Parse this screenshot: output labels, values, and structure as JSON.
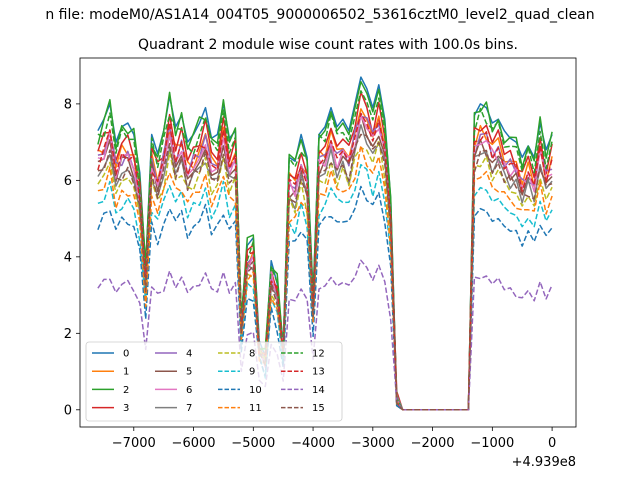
{
  "chart_data": {
    "type": "line",
    "suptitle": "n file: modeM0/AS1A14_004T05_9000006502_53616cztM0_level2_quad_clean",
    "title": "Quadrant 2 module wise count rates with 100.0s bins.",
    "xlabel": "",
    "ylabel": "",
    "x_offset_label": "+4.939e8",
    "xlim": [
      -7900,
      400
    ],
    "ylim": [
      -0.45,
      9.2
    ],
    "xticks": [
      -7000,
      -6000,
      -5000,
      -4000,
      -3000,
      -2000,
      -1000,
      0
    ],
    "xtick_labels": [
      "−7000",
      "−6000",
      "−5000",
      "−4000",
      "−3000",
      "−2000",
      "−1000",
      "0"
    ],
    "yticks": [
      0,
      2,
      4,
      6,
      8
    ],
    "ytick_labels": [
      "0",
      "2",
      "4",
      "6",
      "8"
    ],
    "grid": false,
    "legend_position": "lower-left",
    "legend_columns": 4,
    "x": [
      -7600,
      -7500,
      -7400,
      -7300,
      -7200,
      -7100,
      -7000,
      -6900,
      -6800,
      -6700,
      -6600,
      -6500,
      -6400,
      -6300,
      -6200,
      -6100,
      -6000,
      -5900,
      -5800,
      -5700,
      -5600,
      -5500,
      -5400,
      -5300,
      -5200,
      -5100,
      -5000,
      -4900,
      -4800,
      -4700,
      -4600,
      -4500,
      -4400,
      -4300,
      -4200,
      -4100,
      -4000,
      -3900,
      -3800,
      -3700,
      -3600,
      -3500,
      -3400,
      -3300,
      -3200,
      -3100,
      -3000,
      -2900,
      -2800,
      -2700,
      -2600,
      -2500,
      -2400,
      -2300,
      -2200,
      -2100,
      -2000,
      -1900,
      -1800,
      -1700,
      -1600,
      -1500,
      -1400,
      -1300,
      -1200,
      -1100,
      -1000,
      -900,
      -800,
      -700,
      -600,
      -500,
      -400,
      -300,
      -200,
      -100,
      0
    ],
    "series_profile": {
      "wave": [
        0.04,
        -0.02,
        0.06,
        -0.03,
        0.02,
        -0.05,
        0.03,
        0.05,
        -0.04,
        0.02,
        0.0,
        0.06,
        -0.03,
        0.04,
        -0.06,
        0.02,
        0.05,
        -0.02,
        0.03,
        -0.04,
        0.06,
        -0.01,
        0.04,
        -0.05,
        0.0,
        0.02,
        0.05,
        -0.03,
        0.04,
        -0.02,
        0.03,
        0.06,
        -0.05,
        0.02,
        -0.03,
        0.05,
        0.0,
        0.04,
        -0.02,
        0.06,
        0.03,
        -0.04,
        0.05,
        -0.03,
        0.07,
        -0.02,
        0.04,
        0.03,
        -0.01,
        0.0,
        0.0,
        0.0,
        0.0,
        0.0,
        0.0,
        0.0,
        0.0,
        0.0,
        0.0,
        0.0,
        0.0,
        0.0,
        0.0,
        0.03,
        -0.02,
        0.05,
        0.02,
        -0.04,
        0.03,
        0.01,
        -0.03,
        0.05,
        -0.02,
        0.04,
        0.06,
        -0.03,
        0.02
      ]
    },
    "series": [
      {
        "name": "0",
        "color": "#1f77b4",
        "dash": "solid",
        "level": 7.3,
        "values": [
          7.3,
          7.6,
          8.0,
          7.0,
          7.4,
          7.5,
          7.2,
          6.2,
          3.7,
          7.2,
          6.7,
          7.3,
          8.2,
          7.4,
          7.7,
          7.0,
          7.2,
          7.5,
          7.9,
          7.1,
          7.2,
          8.0,
          7.1,
          7.3,
          2.4,
          4.3,
          4.5,
          1.8,
          1.4,
          3.9,
          3.3,
          1.7,
          6.6,
          6.5,
          7.2,
          6.6,
          3.0,
          7.2,
          7.4,
          7.9,
          7.4,
          7.6,
          7.3,
          8.0,
          8.7,
          8.4,
          7.9,
          8.5,
          7.6,
          5.5,
          0.3,
          0.0,
          0.0,
          0.0,
          0.0,
          0.0,
          0.0,
          0.0,
          0.0,
          0.0,
          0.0,
          0.0,
          0.0,
          7.7,
          8.0,
          7.9,
          7.5,
          7.6,
          7.3,
          7.1,
          7.0,
          6.6,
          6.9,
          6.6,
          7.5,
          6.8,
          7.2
        ]
      },
      {
        "name": "1",
        "color": "#ff7f0e",
        "dash": "solid",
        "level": 6.6
      },
      {
        "name": "2",
        "color": "#2ca02c",
        "dash": "solid",
        "level": 7.2
      },
      {
        "name": "3",
        "color": "#d62728",
        "dash": "solid",
        "level": 6.8
      },
      {
        "name": "4",
        "color": "#9467bd",
        "dash": "solid",
        "level": 6.5
      },
      {
        "name": "5",
        "color": "#8c564b",
        "dash": "solid",
        "level": 6.3
      },
      {
        "name": "6",
        "color": "#e377c2",
        "dash": "solid",
        "level": 6.4
      },
      {
        "name": "7",
        "color": "#7f7f7f",
        "dash": "solid",
        "level": 6.1
      },
      {
        "name": "8",
        "color": "#bcbd22",
        "dash": "dashed",
        "level": 5.9
      },
      {
        "name": "9",
        "color": "#17becf",
        "dash": "dashed",
        "level": 5.3
      },
      {
        "name": "10",
        "color": "#1f77b4",
        "dash": "dashed",
        "level": 4.8
      },
      {
        "name": "11",
        "color": "#ff7f0e",
        "dash": "dashed",
        "level": 5.6
      },
      {
        "name": "12",
        "color": "#2ca02c",
        "dash": "dashed",
        "level": 7.0
      },
      {
        "name": "13",
        "color": "#d62728",
        "dash": "dashed",
        "level": 6.5
      },
      {
        "name": "14",
        "color": "#9467bd",
        "dash": "dashed",
        "level": 3.2
      },
      {
        "name": "15",
        "color": "#8c564b",
        "dash": "dashed",
        "level": 6.1
      }
    ]
  }
}
